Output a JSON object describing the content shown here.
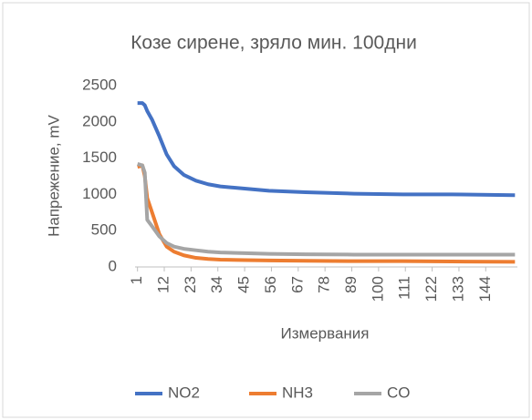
{
  "chart_data": {
    "type": "line",
    "title": "Козе сирене, зряло мин. 100дни",
    "y_label": "Напрежение, mV",
    "x_label": "Измервания",
    "x": [
      1,
      3,
      4,
      5,
      7,
      10,
      13,
      16,
      20,
      25,
      30,
      35,
      45,
      55,
      70,
      90,
      110,
      130,
      156
    ],
    "series": [
      {
        "name": "NO2",
        "color": "#4472c4",
        "values": [
          2260,
          2260,
          2230,
          2150,
          2030,
          1800,
          1550,
          1390,
          1270,
          1190,
          1140,
          1110,
          1080,
          1050,
          1030,
          1010,
          1000,
          1000,
          990
        ]
      },
      {
        "name": "NH3",
        "color": "#ed7d31",
        "values": [
          1380,
          1400,
          1250,
          950,
          750,
          450,
          280,
          210,
          160,
          125,
          110,
          100,
          95,
          90,
          85,
          80,
          80,
          75,
          70
        ]
      },
      {
        "name": "CO",
        "color": "#a5a5a5",
        "values": [
          1420,
          1400,
          1300,
          650,
          560,
          420,
          330,
          280,
          250,
          230,
          210,
          200,
          190,
          180,
          175,
          170,
          170,
          170,
          170
        ]
      }
    ],
    "xlim": [
      0,
      157
    ],
    "xticks": [
      1,
      12,
      23,
      34,
      45,
      56,
      67,
      78,
      89,
      100,
      111,
      122,
      133,
      144
    ],
    "ylim": [
      0,
      2500
    ],
    "yticks": [
      0,
      500,
      1000,
      1500,
      2000,
      2500
    ],
    "grid": false,
    "legend": "bottom"
  }
}
